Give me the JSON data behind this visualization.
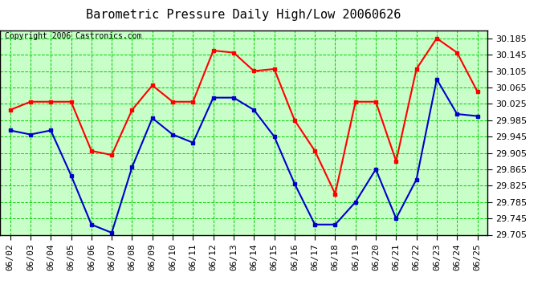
{
  "title": "Barometric Pressure Daily High/Low 20060626",
  "copyright": "Copyright 2006 Castronics.com",
  "dates": [
    "06/02",
    "06/03",
    "06/04",
    "06/05",
    "06/06",
    "06/07",
    "06/08",
    "06/09",
    "06/10",
    "06/11",
    "06/12",
    "06/13",
    "06/14",
    "06/15",
    "06/16",
    "06/17",
    "06/18",
    "06/19",
    "06/20",
    "06/21",
    "06/22",
    "06/23",
    "06/24",
    "06/25"
  ],
  "high_values": [
    30.01,
    30.03,
    30.03,
    30.03,
    29.91,
    29.9,
    30.01,
    30.07,
    30.03,
    30.03,
    30.155,
    30.15,
    30.105,
    30.11,
    29.985,
    29.91,
    29.805,
    30.03,
    30.03,
    29.885,
    30.11,
    30.185,
    30.15,
    30.055
  ],
  "low_values": [
    29.96,
    29.95,
    29.96,
    29.85,
    29.73,
    29.71,
    29.87,
    29.99,
    29.95,
    29.93,
    30.04,
    30.04,
    30.01,
    29.945,
    29.83,
    29.73,
    29.73,
    29.785,
    29.865,
    29.745,
    29.84,
    30.085,
    30.0,
    29.995
  ],
  "ylim_min": 29.705,
  "ylim_max": 30.205,
  "ytick_step": 0.04,
  "high_color": "#ff0000",
  "low_color": "#0000cc",
  "fig_bg_color": "#ffffff",
  "plot_bg_color": "#c8ffc8",
  "grid_color": "#00cc00",
  "title_fontsize": 11,
  "copyright_fontsize": 7,
  "tick_fontsize": 8,
  "marker": "s",
  "marker_size": 3,
  "line_width": 1.5
}
